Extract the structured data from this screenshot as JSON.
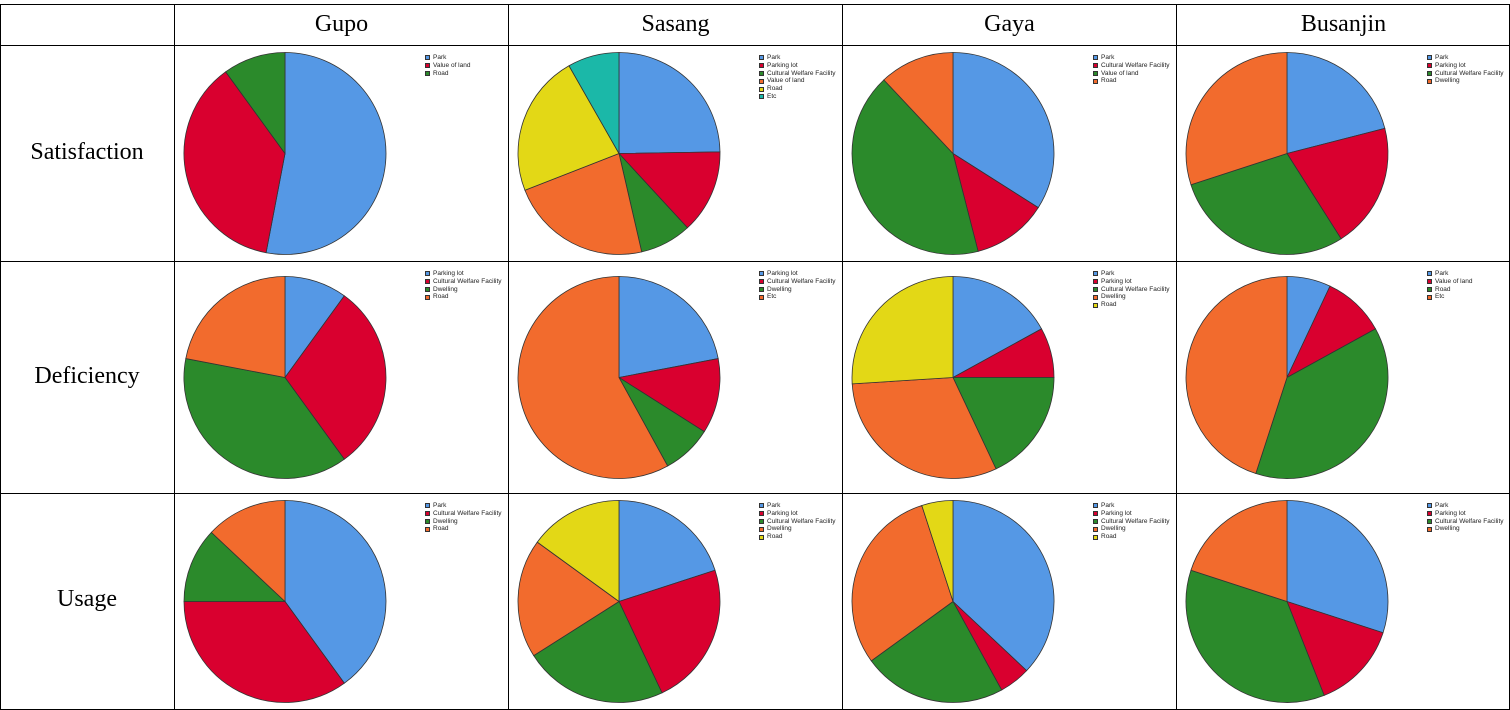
{
  "column_headers": [
    "Gupo",
    "Sasang",
    "Gaya",
    "Busanjin"
  ],
  "row_headers": [
    "Satisfaction",
    "Deficiency",
    "Usage"
  ],
  "colors": {
    "Park": "#5598e5",
    "Parking lot": "#d9002f",
    "Value of land": "#d9002f",
    "Cultural Welfare Facility": "#2b8a2b",
    "Road_gupo_sat": "#2b8a2b",
    "Dwelling": "#f26b2d",
    "Road": "#e3d816",
    "Etc": "#1bb8a8"
  },
  "chart_data": [
    {
      "type": "pie",
      "row": "Satisfaction",
      "column": "Gupo",
      "labels": [
        "Park",
        "Value of land",
        "Road"
      ],
      "colors": [
        "#5598e5",
        "#d9002f",
        "#2b8a2b"
      ],
      "values": [
        53,
        37,
        10
      ]
    },
    {
      "type": "pie",
      "row": "Satisfaction",
      "column": "Sasang",
      "labels": [
        "Park",
        "Parking lot",
        "Cultural Welfare Facility",
        "Value of land",
        "Road",
        "Etc"
      ],
      "colors": [
        "#5598e5",
        "#d9002f",
        "#2b8a2b",
        "#f26b2d",
        "#e3d816",
        "#1bb8a8"
      ],
      "values": [
        24,
        13,
        8,
        22,
        22,
        8
      ]
    },
    {
      "type": "pie",
      "row": "Satisfaction",
      "column": "Gaya",
      "labels": [
        "Park",
        "Cultural Welfare Facility",
        "Value of land",
        "Road"
      ],
      "colors": [
        "#5598e5",
        "#d9002f",
        "#2b8a2b",
        "#f26b2d"
      ],
      "values": [
        34,
        12,
        42,
        12
      ]
    },
    {
      "type": "pie",
      "row": "Satisfaction",
      "column": "Busanjin",
      "labels": [
        "Park",
        "Parking lot",
        "Cultural Welfare Facility",
        "Dwelling"
      ],
      "colors": [
        "#5598e5",
        "#d9002f",
        "#2b8a2b",
        "#f26b2d"
      ],
      "values": [
        21,
        20,
        29,
        30
      ]
    },
    {
      "type": "pie",
      "row": "Deficiency",
      "column": "Gupo",
      "labels": [
        "Parking lot",
        "Cultural Welfare Facility",
        "Dwelling",
        "Road"
      ],
      "colors": [
        "#5598e5",
        "#d9002f",
        "#2b8a2b",
        "#f26b2d"
      ],
      "values": [
        10,
        30,
        38,
        22
      ]
    },
    {
      "type": "pie",
      "row": "Deficiency",
      "column": "Sasang",
      "labels": [
        "Parking lot",
        "Cultural Welfare Facility",
        "Dwelling",
        "Etc"
      ],
      "colors": [
        "#5598e5",
        "#d9002f",
        "#2b8a2b",
        "#f26b2d"
      ],
      "values": [
        22,
        12,
        8,
        58
      ]
    },
    {
      "type": "pie",
      "row": "Deficiency",
      "column": "Gaya",
      "labels": [
        "Park",
        "Parking lot",
        "Cultural Welfare Facility",
        "Dwelling",
        "Road"
      ],
      "colors": [
        "#5598e5",
        "#d9002f",
        "#2b8a2b",
        "#f26b2d",
        "#e3d816"
      ],
      "values": [
        17,
        8,
        18,
        31,
        26
      ]
    },
    {
      "type": "pie",
      "row": "Deficiency",
      "column": "Busanjin",
      "labels": [
        "Park",
        "Value of land",
        "Road",
        "Etc"
      ],
      "colors": [
        "#5598e5",
        "#d9002f",
        "#2b8a2b",
        "#f26b2d"
      ],
      "values": [
        7,
        10,
        38,
        45
      ]
    },
    {
      "type": "pie",
      "row": "Usage",
      "column": "Gupo",
      "labels": [
        "Park",
        "Cultural Welfare Facility",
        "Dwelling",
        "Road"
      ],
      "colors": [
        "#5598e5",
        "#d9002f",
        "#2b8a2b",
        "#f26b2d"
      ],
      "values": [
        40,
        35,
        12,
        13
      ]
    },
    {
      "type": "pie",
      "row": "Usage",
      "column": "Sasang",
      "labels": [
        "Park",
        "Parking lot",
        "Cultural Welfare Facility",
        "Dwelling",
        "Road"
      ],
      "colors": [
        "#5598e5",
        "#d9002f",
        "#2b8a2b",
        "#f26b2d",
        "#e3d816"
      ],
      "values": [
        20,
        23,
        23,
        19,
        15
      ]
    },
    {
      "type": "pie",
      "row": "Usage",
      "column": "Gaya",
      "labels": [
        "Park",
        "Parking lot",
        "Cultural Welfare Facility",
        "Dwelling",
        "Road"
      ],
      "colors": [
        "#5598e5",
        "#d9002f",
        "#2b8a2b",
        "#f26b2d",
        "#e3d816"
      ],
      "values": [
        37,
        5,
        23,
        30,
        5
      ]
    },
    {
      "type": "pie",
      "row": "Usage",
      "column": "Busanjin",
      "labels": [
        "Park",
        "Parking lot",
        "Cultural Welfare Facility",
        "Dwelling"
      ],
      "colors": [
        "#5598e5",
        "#d9002f",
        "#2b8a2b",
        "#f26b2d"
      ],
      "values": [
        30,
        14,
        36,
        20
      ]
    }
  ]
}
